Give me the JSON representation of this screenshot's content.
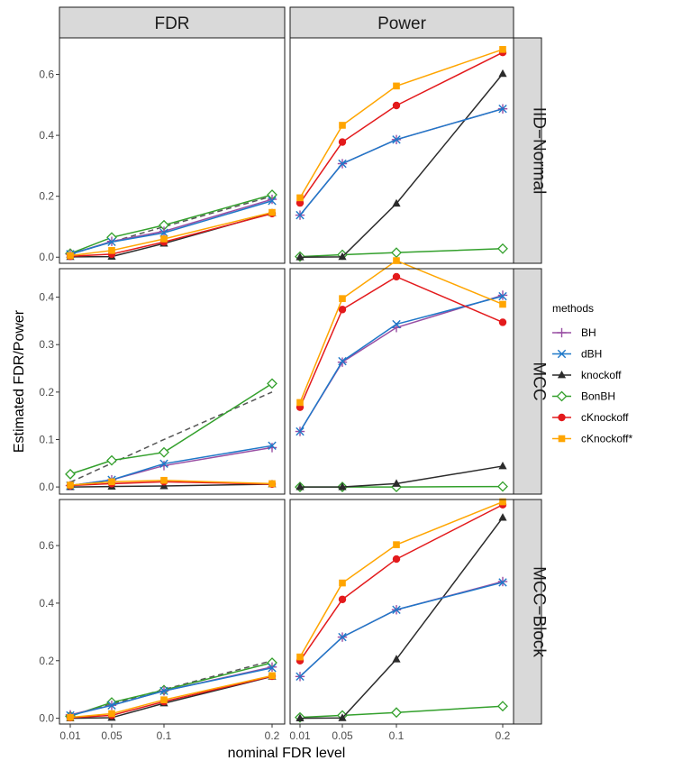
{
  "chart_data": {
    "type": "line",
    "ylabel": "Estimated FDR/Power",
    "xlabel": "nominal FDR level",
    "x": [
      0.01,
      0.05,
      0.1,
      0.2
    ],
    "x_tick_labels": [
      "0.01",
      "0.05",
      "0.1",
      "0.2"
    ],
    "columns": [
      "FDR",
      "Power"
    ],
    "rows": [
      "IID−Normal",
      "MCC",
      "MCC−Block"
    ],
    "legend": {
      "title": "methods",
      "items": [
        {
          "name": "BH",
          "color": "#984ea3",
          "shape": "plus"
        },
        {
          "name": "dBH",
          "color": "#1f78c8",
          "shape": "cross"
        },
        {
          "name": "knockoff",
          "color": "#2b2b2b",
          "shape": "triangle"
        },
        {
          "name": "BonBH",
          "color": "#33a02c",
          "shape": "diamond"
        },
        {
          "name": "cKnockoff",
          "color": "#e31a1c",
          "shape": "circle"
        },
        {
          "name": "cKnockoff*",
          "color": "#ffa500",
          "shape": "square"
        }
      ]
    },
    "reference_line": {
      "color": "#555555",
      "style": "dashed"
    },
    "row_ylim": [
      [
        -0.02,
        0.72
      ],
      [
        -0.015,
        0.46
      ],
      [
        -0.02,
        0.76
      ]
    ],
    "row_yticks": [
      {
        "values": [
          0,
          0.2,
          0.4,
          0.6
        ],
        "labels": [
          "0.0",
          "0.2",
          "0.4",
          "0.6"
        ]
      },
      {
        "values": [
          0,
          0.1,
          0.2,
          0.3,
          0.4
        ],
        "labels": [
          "0.0",
          "0.1",
          "0.2",
          "0.3",
          "0.4"
        ]
      },
      {
        "values": [
          0,
          0.2,
          0.4,
          0.6
        ],
        "labels": [
          "0.0",
          "0.2",
          "0.4",
          "0.6"
        ]
      }
    ],
    "panels": [
      {
        "row": 0,
        "col": 0,
        "show_ref": true,
        "series": {
          "BH": [
            0.01,
            0.052,
            0.085,
            0.19
          ],
          "dBH": [
            0.01,
            0.05,
            0.08,
            0.185
          ],
          "knockoff": [
            0.001,
            0.002,
            0.045,
            0.145
          ],
          "BonBH": [
            0.012,
            0.065,
            0.105,
            0.205
          ],
          "cKnockoff": [
            0.003,
            0.01,
            0.05,
            0.143
          ],
          "cKnockoff*": [
            0.005,
            0.022,
            0.06,
            0.147
          ]
        }
      },
      {
        "row": 0,
        "col": 1,
        "show_ref": false,
        "series": {
          "BH": [
            0.138,
            0.307,
            0.386,
            0.487
          ],
          "dBH": [
            0.138,
            0.307,
            0.386,
            0.487
          ],
          "knockoff": [
            0.0,
            0.001,
            0.176,
            0.602
          ],
          "BonBH": [
            0.002,
            0.008,
            0.015,
            0.028
          ],
          "cKnockoff": [
            0.178,
            0.378,
            0.498,
            0.672
          ],
          "cKnockoff*": [
            0.195,
            0.433,
            0.562,
            0.682
          ]
        }
      },
      {
        "row": 1,
        "col": 0,
        "show_ref": true,
        "series": {
          "BH": [
            0.003,
            0.015,
            0.045,
            0.083
          ],
          "dBH": [
            0.003,
            0.015,
            0.049,
            0.087
          ],
          "knockoff": [
            0.0,
            0.001,
            0.002,
            0.006
          ],
          "BonBH": [
            0.027,
            0.056,
            0.073,
            0.218
          ],
          "cKnockoff": [
            0.003,
            0.007,
            0.011,
            0.006
          ],
          "cKnockoff*": [
            0.004,
            0.011,
            0.014,
            0.007
          ]
        }
      },
      {
        "row": 1,
        "col": 1,
        "show_ref": false,
        "series": {
          "BH": [
            0.117,
            0.263,
            0.336,
            0.404
          ],
          "dBH": [
            0.117,
            0.265,
            0.343,
            0.402
          ],
          "knockoff": [
            0.0,
            0.0,
            0.007,
            0.044
          ],
          "BonBH": [
            0.0,
            0.0,
            0.0,
            0.001
          ],
          "cKnockoff": [
            0.168,
            0.374,
            0.443,
            0.347
          ],
          "cKnockoff*": [
            0.178,
            0.397,
            0.477,
            0.385
          ]
        }
      },
      {
        "row": 2,
        "col": 0,
        "show_ref": true,
        "series": {
          "BH": [
            0.012,
            0.045,
            0.095,
            0.178
          ],
          "dBH": [
            0.01,
            0.045,
            0.095,
            0.175
          ],
          "knockoff": [
            0.0,
            0.002,
            0.052,
            0.145
          ],
          "BonBH": [
            0.007,
            0.055,
            0.098,
            0.193
          ],
          "cKnockoff": [
            0.002,
            0.01,
            0.058,
            0.146
          ],
          "cKnockoff*": [
            0.003,
            0.016,
            0.064,
            0.148
          ]
        }
      },
      {
        "row": 2,
        "col": 1,
        "show_ref": false,
        "series": {
          "BH": [
            0.145,
            0.282,
            0.377,
            0.475
          ],
          "dBH": [
            0.145,
            0.282,
            0.377,
            0.472
          ],
          "knockoff": [
            0.0,
            0.001,
            0.205,
            0.697
          ],
          "BonBH": [
            0.003,
            0.01,
            0.02,
            0.042
          ],
          "cKnockoff": [
            0.2,
            0.413,
            0.553,
            0.742
          ],
          "cKnockoff*": [
            0.213,
            0.47,
            0.603,
            0.752
          ]
        }
      }
    ]
  }
}
